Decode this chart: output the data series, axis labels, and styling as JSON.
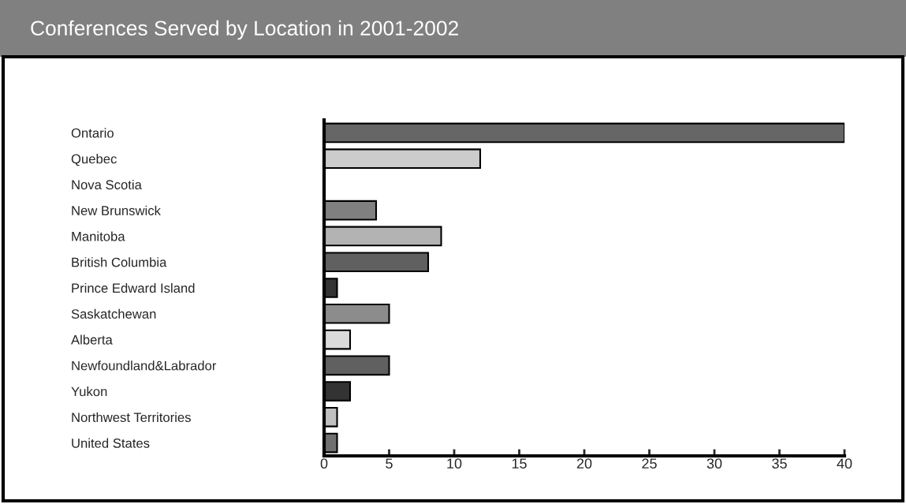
{
  "chart_data": {
    "type": "bar",
    "orientation": "horizontal",
    "title": "Conferences Served by Location in 2001-2002",
    "categories": [
      "Ontario",
      "Quebec",
      "Nova Scotia",
      "New Brunswick",
      "Manitoba",
      "British Columbia",
      "Prince Edward Island",
      "Saskatchewan",
      "Alberta",
      "Newfoundland&Labrador",
      "Yukon",
      "Northwest Territories",
      "United States"
    ],
    "values": [
      40,
      12,
      0,
      4,
      9,
      8,
      1,
      5,
      2,
      5,
      2,
      1,
      1
    ],
    "colors": [
      "#666666",
      "#cccccc",
      "#999999",
      "#808080",
      "#b3b3b3",
      "#606060",
      "#333333",
      "#8c8c8c",
      "#dadada",
      "#606060",
      "#333333",
      "#c0c0c0",
      "#707070"
    ],
    "xlim": [
      0,
      40
    ],
    "xticks": [
      0,
      5,
      10,
      15,
      20,
      25,
      30,
      35,
      40
    ],
    "grid": false,
    "legend": false
  }
}
